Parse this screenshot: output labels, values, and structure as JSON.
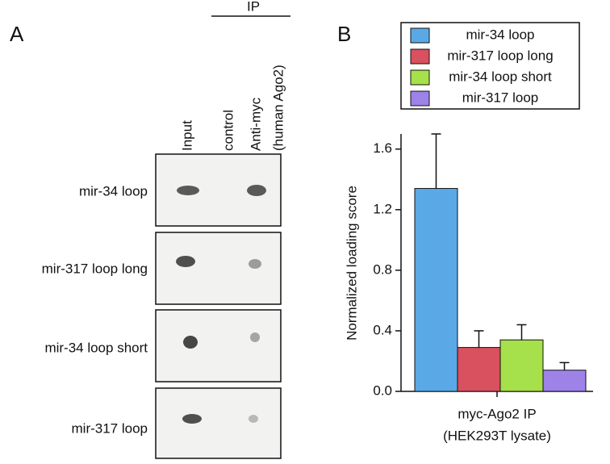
{
  "panel_a": {
    "label": "A",
    "ip_label": "IP",
    "columns": [
      "Input",
      "control",
      "Anti-myc",
      "(human Ago2)"
    ],
    "rows": [
      "mir-34 loop",
      "mir-317 loop long",
      "mir-34 loop short",
      "mir-317 loop"
    ]
  },
  "chart_data": {
    "type": "bar",
    "panel_label": "B",
    "ylabel": "Normalized loading score",
    "xlabel": [
      "myc-Ago2 IP",
      "(HEK293T lysate)"
    ],
    "ylim": [
      0,
      1.7
    ],
    "yticks": [
      {
        "value": 0,
        "label": "0.0"
      },
      0.4,
      0.8,
      1.2,
      1.6
    ],
    "series": [
      {
        "name": "mir-34 loop",
        "color": "#5aa9e6",
        "values": [
          1.34
        ],
        "errors": [
          0.36
        ]
      },
      {
        "name": "mir-317 loop long",
        "color": "#d9505e",
        "values": [
          0.29
        ],
        "errors": [
          0.11
        ]
      },
      {
        "name": "mir-34 loop short",
        "color": "#a6e04a",
        "values": [
          0.34
        ],
        "errors": [
          0.1
        ]
      },
      {
        "name": "mir-317 loop",
        "color": "#9d82e8",
        "values": [
          0.14
        ],
        "errors": [
          0.05
        ]
      }
    ]
  }
}
